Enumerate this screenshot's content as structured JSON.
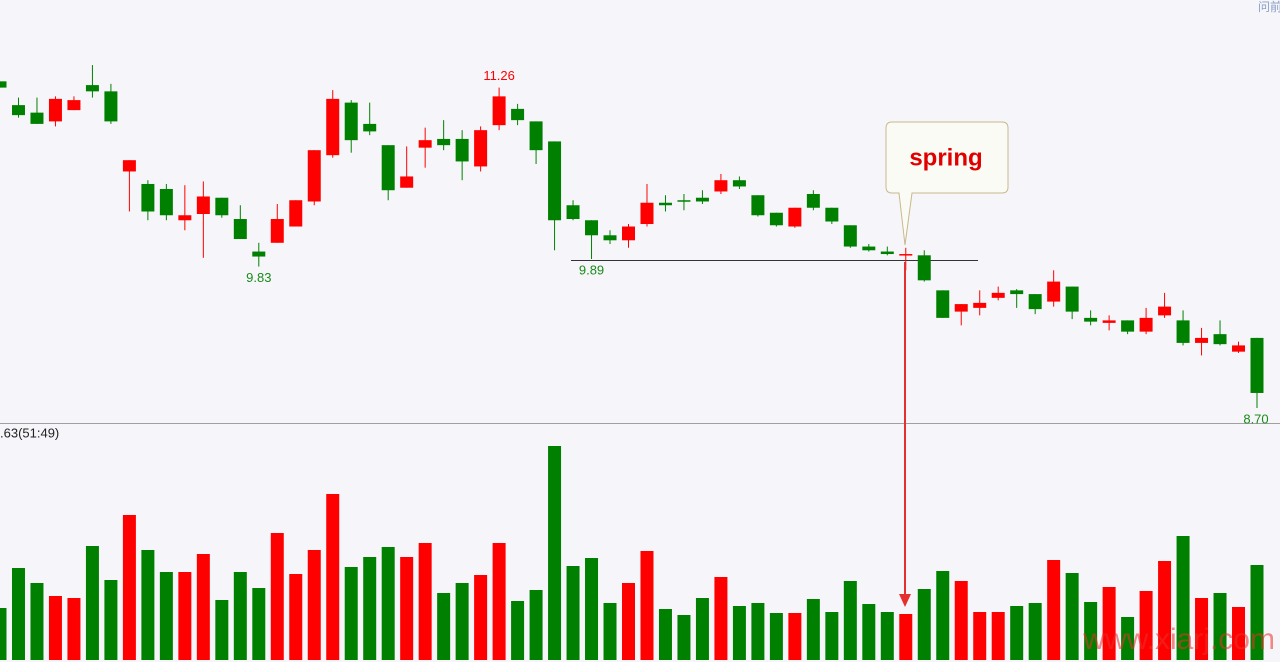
{
  "chart_data": {
    "type": "candlestick",
    "up_color": "#ff0000",
    "down_color": "#008000",
    "ylim": [
      8.58,
      11.96
    ],
    "volume_ylim": [
      0,
      220
    ],
    "open": [
      11.31,
      11.12,
      11.06,
      10.99,
      11.08,
      11.28,
      11.23,
      10.59,
      10.49,
      10.45,
      10.2,
      10.25,
      10.38,
      10.21,
      9.95,
      10.02,
      10.15,
      10.35,
      10.72,
      11.14,
      10.97,
      10.8,
      10.46,
      10.78,
      10.85,
      10.85,
      10.63,
      10.96,
      11.09,
      10.99,
      10.83,
      10.32,
      10.2,
      10.08,
      10.04,
      10.17,
      10.34,
      10.36,
      10.38,
      10.43,
      10.52,
      10.4,
      10.26,
      10.15,
      10.41,
      10.3,
      10.16,
      9.99,
      9.95,
      9.92,
      9.92,
      9.64,
      9.47,
      9.5,
      9.58,
      9.64,
      9.61,
      9.55,
      9.67,
      9.42,
      9.38,
      9.4,
      9.31,
      9.44,
      9.4,
      9.22,
      9.29,
      9.15,
      9.26
    ],
    "high": [
      11.31,
      11.18,
      11.18,
      11.19,
      11.19,
      11.44,
      11.29,
      10.68,
      10.52,
      10.49,
      10.48,
      10.51,
      10.38,
      10.32,
      10.02,
      10.33,
      10.36,
      10.76,
      11.24,
      11.16,
      11.14,
      10.8,
      10.79,
      10.94,
      11.0,
      10.92,
      10.95,
      11.26,
      11.13,
      10.99,
      10.83,
      10.36,
      10.2,
      10.12,
      10.17,
      10.49,
      10.4,
      10.41,
      10.44,
      10.57,
      10.55,
      10.4,
      10.26,
      10.3,
      10.44,
      10.3,
      10.16,
      10.01,
      9.99,
      9.98,
      9.96,
      9.64,
      9.53,
      9.64,
      9.67,
      9.65,
      9.61,
      9.8,
      9.67,
      9.48,
      9.44,
      9.4,
      9.5,
      9.62,
      9.48,
      9.34,
      9.4,
      9.23,
      9.26
    ],
    "low": [
      11.26,
      11.02,
      10.97,
      10.95,
      11.08,
      11.18,
      10.97,
      10.27,
      10.2,
      10.2,
      10.12,
      9.9,
      10.22,
      10.05,
      9.83,
      10.02,
      10.15,
      10.32,
      10.7,
      10.74,
      10.88,
      10.36,
      10.46,
      10.62,
      10.76,
      10.52,
      10.59,
      10.92,
      10.96,
      10.65,
      9.96,
      10.2,
      9.89,
      10.01,
      9.98,
      10.15,
      10.27,
      10.28,
      10.33,
      10.41,
      10.45,
      10.23,
      10.15,
      10.14,
      10.28,
      10.17,
      9.98,
      9.95,
      9.92,
      9.8,
      9.71,
      9.42,
      9.36,
      9.44,
      9.56,
      9.5,
      9.45,
      9.51,
      9.41,
      9.36,
      9.32,
      9.29,
      9.29,
      9.42,
      9.2,
      9.12,
      9.2,
      9.14,
      8.7
    ],
    "close": [
      11.26,
      11.04,
      10.97,
      11.17,
      11.16,
      11.23,
      10.99,
      10.68,
      10.27,
      10.24,
      10.24,
      10.39,
      10.24,
      10.05,
      9.91,
      10.21,
      10.36,
      10.76,
      11.17,
      10.84,
      10.91,
      10.44,
      10.55,
      10.84,
      10.8,
      10.67,
      10.92,
      11.19,
      11.0,
      10.76,
      10.2,
      10.21,
      10.08,
      10.04,
      10.15,
      10.34,
      10.32,
      10.35,
      10.35,
      10.52,
      10.47,
      10.24,
      10.16,
      10.3,
      10.3,
      10.19,
      9.99,
      9.96,
      9.93,
      9.93,
      9.72,
      9.42,
      9.53,
      9.54,
      9.62,
      9.61,
      9.49,
      9.71,
      9.47,
      9.39,
      9.4,
      9.31,
      9.42,
      9.51,
      9.22,
      9.26,
      9.21,
      9.2,
      8.82
    ],
    "volume": [
      52,
      92,
      77,
      64,
      62,
      114,
      80,
      145,
      110,
      88,
      88,
      106,
      60,
      88,
      72,
      127,
      86,
      110,
      166,
      93,
      103,
      113,
      103,
      117,
      67,
      77,
      85,
      117,
      59,
      70,
      214,
      94,
      102,
      57,
      77,
      109,
      51,
      45,
      62,
      83,
      54,
      57,
      47,
      47,
      61,
      48,
      79,
      56,
      48,
      46,
      71,
      89,
      79,
      48,
      48,
      54,
      57,
      100,
      87,
      58,
      73,
      43,
      69,
      99,
      124,
      62,
      67,
      53,
      95
    ],
    "high_value_labels": [
      null,
      null,
      null,
      null,
      null,
      null,
      null,
      null,
      null,
      null,
      null,
      null,
      null,
      null,
      null,
      null,
      null,
      null,
      null,
      null,
      null,
      null,
      null,
      null,
      null,
      null,
      null,
      "11.26",
      null,
      null,
      null,
      null,
      null,
      null,
      null,
      null,
      null,
      null,
      null,
      null,
      null,
      null,
      null,
      null,
      null,
      null,
      null,
      null,
      null,
      null,
      null,
      null,
      null,
      null,
      null,
      null,
      null,
      null,
      null,
      null,
      null,
      null,
      null,
      null,
      null,
      null,
      null,
      null,
      null
    ],
    "low_value_labels": [
      null,
      null,
      null,
      null,
      null,
      null,
      null,
      null,
      null,
      null,
      null,
      null,
      null,
      null,
      "9.83",
      null,
      null,
      null,
      null,
      null,
      null,
      null,
      null,
      null,
      null,
      null,
      null,
      null,
      null,
      null,
      null,
      null,
      "9.89",
      null,
      null,
      null,
      null,
      null,
      null,
      null,
      null,
      null,
      null,
      null,
      null,
      null,
      null,
      null,
      null,
      null,
      null,
      null,
      null,
      null,
      null,
      null,
      null,
      null,
      null,
      null,
      null,
      null,
      null,
      null,
      null,
      null,
      null,
      null,
      "8.70"
    ],
    "callout": "spring",
    "indicator_label": ".63(51:49)",
    "corner_text": "问前",
    "watermark": "www.xiarj.com"
  }
}
